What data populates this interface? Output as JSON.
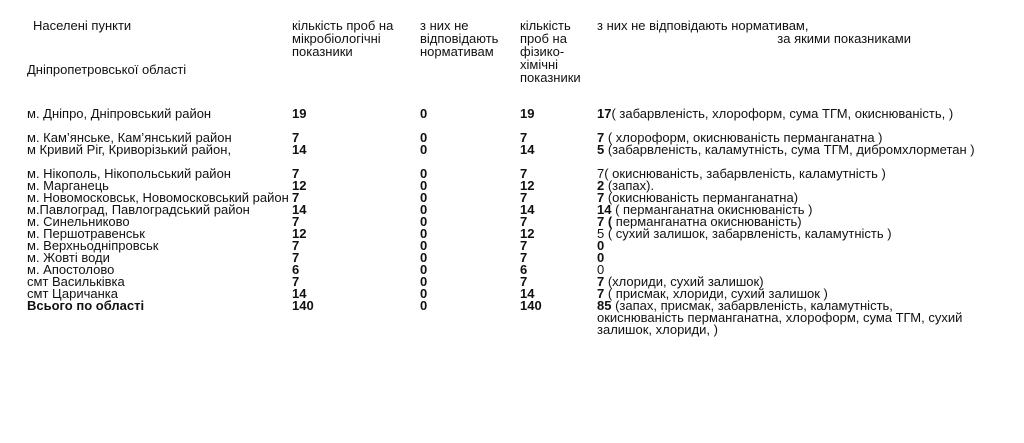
{
  "headers": {
    "settlements_l1": "Населені пункти",
    "settlements_l2": "Дніпропетровської області",
    "micro_total": "кількість проб на мікробіологічні показники",
    "micro_nonconf": "з них не відповідають нормативам",
    "chem_total": "кількість проб на фізико-хімічні показники",
    "chem_nonconf_l1": "з них не відповідають нормативам,",
    "chem_nonconf_l2": "за якими показниками"
  },
  "rows": [
    {
      "name": "м. Дніпро, Дніпровський район",
      "micro": "19",
      "micro_bad": "0",
      "chem": "19",
      "chem_bad": "17",
      "details": "( забарвленість,  хлороформ, сума ТГМ, окиснюваність, )"
    },
    {
      "name": "м. Кам’янське,  Кам’янський район",
      "micro": "7",
      "micro_bad": "0",
      "chem": "7",
      "chem_bad": "7",
      "details": " ( хлороформ, окиснюваність перманганатна )"
    },
    {
      "name": "м Кривий Ріг, Криворізький район,",
      "micro": "14",
      "micro_bad": "0",
      "chem": "14",
      "chem_bad": "5",
      "details": " (забарвленість, каламутність,  сума ТГМ, дибромхлорметан )"
    },
    {
      "name": "м. Нікополь, Нікопольський район",
      "micro": "7",
      "micro_bad": "0",
      "chem": "7",
      "chem_bad": "7",
      "details": "( окиснюваність, забарвленість, каламутність )"
    },
    {
      "name": "м. Марганець",
      "micro": "12",
      "micro_bad": "0",
      "chem": "12",
      "chem_bad": "2",
      "details": " (запах)."
    },
    {
      "name": "м. Новомосковськ, Новомосковський район",
      "micro": "7",
      "micro_bad": "0",
      "chem": "7",
      "chem_bad": "7",
      "details": " (окиснюваність перманганатна)"
    },
    {
      "name": "м.Павлоград, Павлоградський район",
      "micro": "14",
      "micro_bad": "0",
      "chem": "14",
      "chem_bad": "14",
      "details": "  (  перманганатна окиснюваність )"
    },
    {
      "name": "м. Синельниково",
      "micro": "7",
      "micro_bad": "0",
      "chem": "7",
      "chem_bad": "7 (",
      "details": "  перманганатна окиснюваність)"
    },
    {
      "name": "м. Першотравенськ",
      "micro": "12",
      "micro_bad": "0",
      "chem": "12",
      "chem_bad": "5",
      "details": " ( сухий залишок, забарвленість, каламутність )"
    },
    {
      "name": "м. Верхньодніпровськ",
      "micro": "7",
      "micro_bad": "0",
      "chem": "7",
      "chem_bad": "0",
      "details": ""
    },
    {
      "name": "м. Жовті води",
      "micro": "7",
      "micro_bad": "0",
      "chem": "7",
      "chem_bad": "0",
      "details": ""
    },
    {
      "name": " м. Апостолово",
      "micro": "6",
      "micro_bad": "0",
      "chem": "6",
      "chem_bad": "0",
      "details": ""
    },
    {
      "name": "смт Васильківка",
      "micro": "7",
      "micro_bad": "0",
      "chem": "7",
      "chem_bad": "7",
      "details": " (хлориди, сухий залишок)"
    },
    {
      "name": "смт Царичанка",
      "micro": "14",
      "micro_bad": "0",
      "chem": "14",
      "chem_bad": "7",
      "details": " (  присмак, хлориди, сухий залишок )"
    }
  ],
  "total": {
    "name": "Всього по області",
    "micro": "140",
    "micro_bad": "0",
    "chem": "140",
    "chem_bad": "85",
    "details": " (запах, присмак, забарвленість, каламутність, окиснюваність перманганатна, хлороформ, сума ТГМ, сухий залишок, хлориди, )"
  }
}
